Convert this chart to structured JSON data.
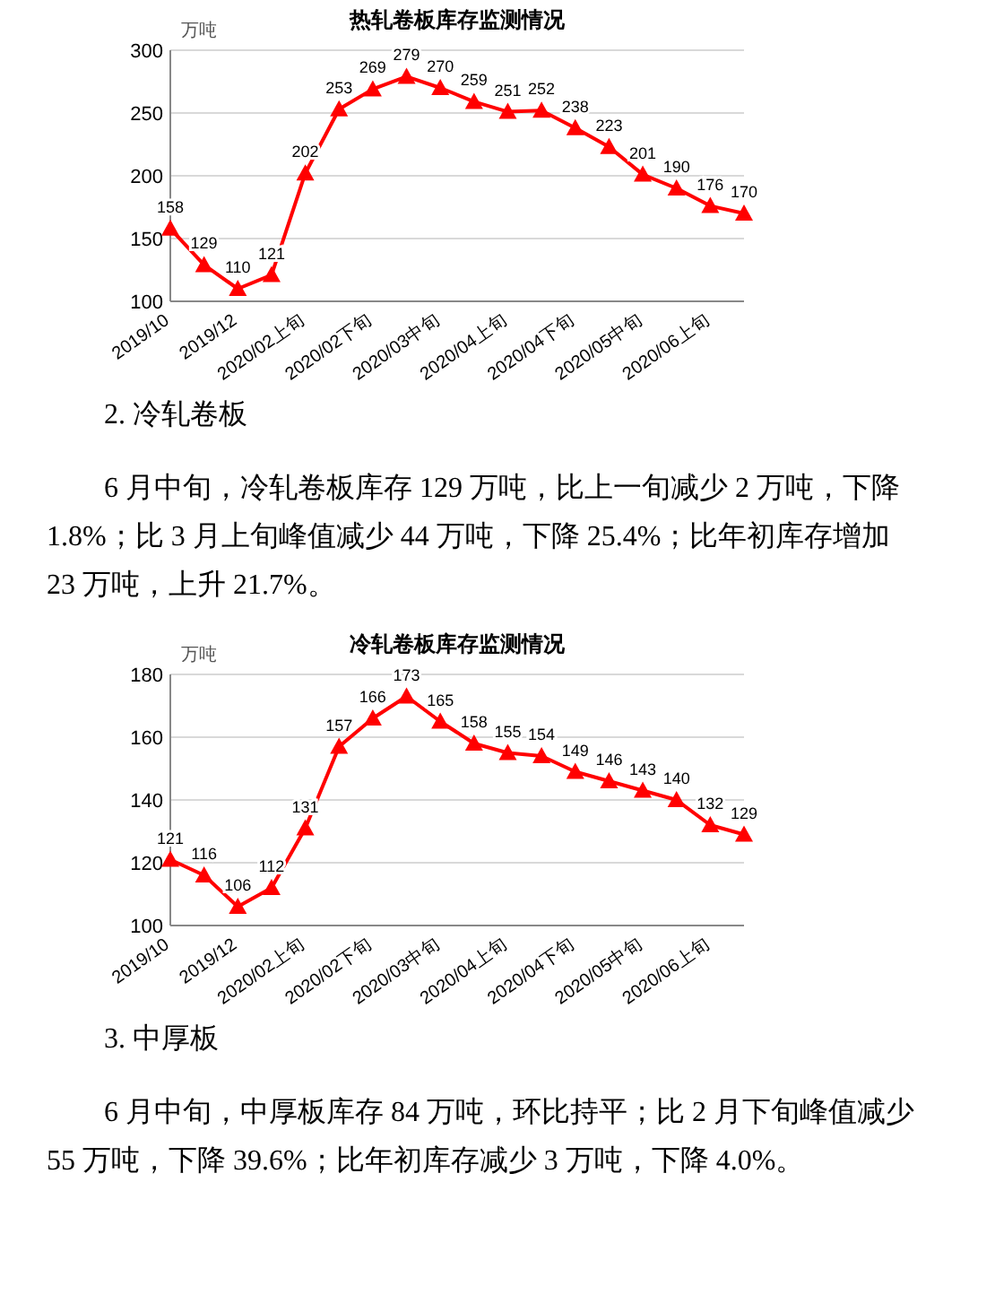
{
  "chart_data": [
    {
      "type": "line",
      "title": "热轧卷板库存监测情况",
      "ylabel": "万吨",
      "categories": [
        "2019/10",
        null,
        "2019/12",
        null,
        "2020/02上旬",
        null,
        "2020/02下旬",
        null,
        "2020/03中旬",
        null,
        "2020/04上旬",
        null,
        "2020/04下旬",
        null,
        "2020/05中旬",
        null,
        "2020/06上旬",
        null
      ],
      "series": [
        {
          "color": "#ff0000",
          "values": [
            158,
            129,
            110,
            121,
            202,
            253,
            269,
            279,
            270,
            259,
            251,
            252,
            238,
            223,
            201,
            190,
            176,
            170
          ]
        }
      ],
      "ylim": [
        100,
        300
      ],
      "yticks": [
        100,
        150,
        200,
        250,
        300
      ],
      "grid": "y",
      "marker": "triangle",
      "line_style": "solid",
      "data_labels": true,
      "annotations": [
        "2. 冷轧卷板",
        "6 月中旬，冷轧卷板库存 129 万吨，比上一旬减少 2 万吨，下降 1.8%；比 3 月上旬峰值减少 44 万吨，下降 25.4%；比年初库存增加 23 万吨，上升 21.7%。"
      ]
    },
    {
      "type": "line",
      "title": "冷轧卷板库存监测情况",
      "ylabel": "万吨",
      "categories": [
        "2019/10",
        null,
        "2019/12",
        null,
        "2020/02上旬",
        null,
        "2020/02下旬",
        null,
        "2020/03中旬",
        null,
        "2020/04上旬",
        null,
        "2020/04下旬",
        null,
        "2020/05中旬",
        null,
        "2020/06上旬",
        null
      ],
      "series": [
        {
          "color": "#ff0000",
          "values": [
            121,
            116,
            106,
            112,
            131,
            157,
            166,
            173,
            165,
            158,
            155,
            154,
            149,
            146,
            143,
            140,
            132,
            129
          ]
        }
      ],
      "ylim": [
        100,
        180
      ],
      "yticks": [
        100,
        120,
        140,
        160,
        180
      ],
      "grid": "y",
      "marker": "triangle",
      "line_style": "solid",
      "data_labels": true,
      "annotations": [
        "3. 中厚板",
        "6 月中旬，中厚板库存 84 万吨，环比持平；比 2 月下旬峰值减少 55 万吨，下降 39.6%；比年初库存减少 3 万吨，下降 4.0%。"
      ]
    }
  ]
}
